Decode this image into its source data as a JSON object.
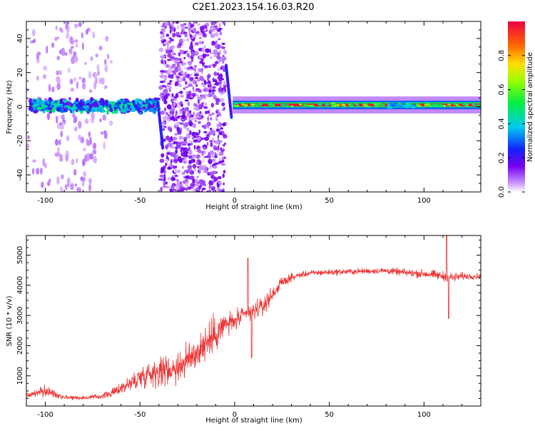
{
  "title": "C2E1.2023.154.16.03.R20",
  "colorbar": {
    "label": "Normalized spectral amplitude",
    "ticks": [
      "0.0",
      "0.2",
      "0.4",
      "0.6",
      "0.8"
    ],
    "range": [
      0,
      1
    ],
    "colormap": "rainbow (violet to red)"
  },
  "chart_data": [
    {
      "type": "heatmap",
      "xlabel": "Height of straight line (km)",
      "ylabel": "Frequency (Hz)",
      "xlim": [
        -110,
        130
      ],
      "ylim": [
        -50,
        50
      ],
      "xticks": [
        -100,
        -50,
        0,
        50,
        100
      ],
      "yticks": [
        -40,
        -20,
        0,
        20,
        40
      ],
      "grid": false,
      "features": [
        {
          "region": "x -110 to -40",
          "description": "noisy band near 0 Hz (about -8 to 10 Hz), sparse scattered low amplitude elsewhere"
        },
        {
          "region": "x -40 to -4",
          "description": "broad scattered low-amplitude noise across full frequency range"
        },
        {
          "region": "x -40 to -38",
          "description": "steep trace descending to about -25 Hz"
        },
        {
          "region": "x -5 to -2",
          "description": "trace swinging from about +24 Hz to -6 Hz"
        },
        {
          "region": "x 0 to 130",
          "description": "strong narrow line at about +1 Hz, normalized amplitude near 1.0"
        }
      ]
    },
    {
      "type": "line",
      "xlabel": "Height of straight line (km)",
      "ylabel": "SNR (10 * v/v)",
      "xlim": [
        -110,
        130
      ],
      "ylim": [
        0,
        5650
      ],
      "xticks": [
        -100,
        -50,
        0,
        50,
        100
      ],
      "yticks": [
        1000,
        2000,
        3000,
        4000,
        5000
      ],
      "color": "#ee3333",
      "series": [
        {
          "x": [
            -110,
            -105,
            -100,
            -95,
            -90,
            -85,
            -80,
            -75,
            -70,
            -65,
            -60,
            -55,
            -50,
            -45,
            -40,
            -35,
            -30,
            -25,
            -20,
            -15,
            -10,
            -5,
            0,
            5,
            10,
            15,
            20,
            25,
            30,
            35,
            40,
            45,
            50,
            55,
            60,
            65,
            70,
            75,
            80,
            85,
            90,
            95,
            100,
            105,
            110,
            115,
            120,
            125,
            130
          ],
          "y": [
            350,
            420,
            500,
            400,
            300,
            280,
            270,
            290,
            330,
            420,
            600,
            750,
            950,
            1100,
            1150,
            1200,
            1300,
            1500,
            1800,
            2100,
            2400,
            2700,
            2800,
            3000,
            3150,
            3300,
            3700,
            4100,
            4250,
            4350,
            4400,
            4420,
            4430,
            4440,
            4450,
            4460,
            4470,
            4480,
            4480,
            4450,
            4420,
            4400,
            4380,
            4350,
            4300,
            4250,
            4300,
            4300,
            4300
          ],
          "noise": [
            120,
            150,
            250,
            150,
            100,
            90,
            90,
            100,
            120,
            150,
            250,
            350,
            450,
            550,
            600,
            600,
            650,
            700,
            750,
            750,
            700,
            550,
            400,
            350,
            350,
            350,
            300,
            200,
            150,
            120,
            120,
            120,
            120,
            120,
            120,
            120,
            120,
            120,
            130,
            140,
            150,
            160,
            170,
            180,
            200,
            200,
            150,
            120,
            120
          ]
        }
      ],
      "spikes": [
        {
          "x": 7,
          "y": 4900
        },
        {
          "x": 9,
          "y": 1600
        },
        {
          "x": 112,
          "y": 5650
        },
        {
          "x": 113,
          "y": 2900
        }
      ]
    }
  ]
}
